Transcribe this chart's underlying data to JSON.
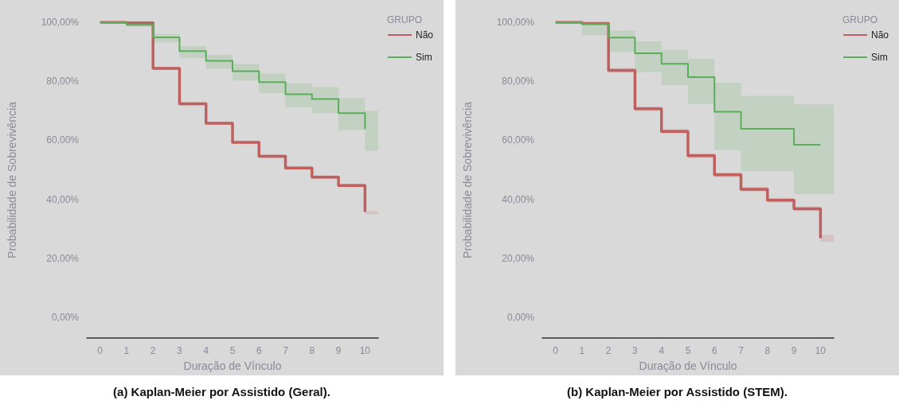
{
  "chart_data": [
    {
      "type": "step",
      "title": "(a) Kaplan-Meier por Assistido (Geral).",
      "xlabel": "Duração de Vínculo",
      "ylabel": "Probabilidade de Sobrevivência",
      "legend_title": "GRUPO",
      "legend": "top right",
      "grid": false,
      "marker": "none",
      "line_style": "solid",
      "x": [
        0,
        1,
        2,
        3,
        4,
        5,
        6,
        7,
        8,
        9,
        10,
        10.5
      ],
      "xlim": [
        -0.5,
        10.5
      ],
      "xticks": [
        0,
        1,
        2,
        3,
        4,
        5,
        6,
        7,
        8,
        9,
        10
      ],
      "ylim": [
        -7,
        100
      ],
      "yticks": [
        {
          "value": 0,
          "label": "0,00%"
        },
        {
          "value": 20,
          "label": "20,00%"
        },
        {
          "value": 40,
          "label": "40,00%"
        },
        {
          "value": 60,
          "label": "60,00%"
        },
        {
          "value": 80,
          "label": "80,00%"
        },
        {
          "value": 100,
          "label": "100,00%"
        }
      ],
      "series": [
        {
          "name": "Não",
          "color": "#c0605e",
          "values": [
            100,
            99.8,
            84.4,
            72.4,
            65.8,
            59.3,
            54.6,
            50.6,
            47.5,
            44.7,
            35.7,
            null
          ],
          "lower": [
            100,
            99.4,
            83.8,
            71.8,
            65.2,
            58.7,
            54.0,
            50.0,
            46.9,
            44.1,
            34.9,
            34.9
          ],
          "upper": [
            100,
            100,
            85.0,
            73.0,
            66.4,
            59.9,
            55.2,
            51.2,
            48.1,
            45.3,
            36.0,
            36.0
          ]
        },
        {
          "name": "Sim",
          "color": "#5aae5a",
          "values": [
            100,
            99.1,
            94.9,
            90.2,
            86.9,
            83.4,
            79.7,
            75.6,
            74.0,
            69.2,
            63.8,
            null
          ],
          "lower": [
            100,
            98.5,
            93.2,
            87.8,
            84.2,
            80.3,
            76.0,
            71.2,
            69.2,
            63.4,
            56.5,
            56.5
          ],
          "upper": [
            100,
            100,
            96.0,
            91.9,
            89.0,
            85.9,
            82.7,
            79.4,
            78.0,
            74.3,
            70.0,
            70.0
          ]
        }
      ]
    },
    {
      "type": "step",
      "title": "(b) Kaplan-Meier por Assistido (STEM).",
      "xlabel": "Duração de Vínculo",
      "ylabel": "Probabilidade de Sobrevivência",
      "legend_title": "GRUPO",
      "legend": "top right",
      "grid": false,
      "marker": "none",
      "line_style": "solid",
      "x": [
        0,
        1,
        2,
        3,
        4,
        5,
        6,
        7,
        8,
        9,
        10,
        10.5
      ],
      "xlim": [
        -0.5,
        10.5
      ],
      "xticks": [
        0,
        1,
        2,
        3,
        4,
        5,
        6,
        7,
        8,
        9,
        10
      ],
      "ylim": [
        -7,
        100
      ],
      "yticks": [
        {
          "value": 0,
          "label": "0,00%"
        },
        {
          "value": 20,
          "label": "20,00%"
        },
        {
          "value": 40,
          "label": "40,00%"
        },
        {
          "value": 60,
          "label": "60,00%"
        },
        {
          "value": 80,
          "label": "80,00%"
        },
        {
          "value": 100,
          "label": "100,00%"
        }
      ],
      "series": [
        {
          "name": "Não",
          "color": "#c0605e",
          "values": [
            100,
            99.6,
            83.7,
            70.7,
            63.0,
            54.8,
            48.3,
            43.4,
            39.7,
            36.8,
            26.8,
            null
          ],
          "lower": [
            100,
            99.0,
            82.9,
            69.9,
            62.2,
            54.0,
            47.5,
            42.6,
            38.9,
            36.0,
            25.6,
            25.6
          ],
          "upper": [
            100,
            100,
            84.5,
            71.5,
            63.8,
            55.6,
            49.1,
            44.2,
            40.5,
            37.6,
            28.0,
            28.0
          ]
        },
        {
          "name": "Sim",
          "color": "#5aae5a",
          "values": [
            100,
            99.4,
            94.8,
            89.5,
            85.9,
            81.4,
            69.7,
            63.9,
            63.9,
            58.5,
            58.5,
            null
          ],
          "lower": [
            100,
            95.6,
            89.9,
            83.1,
            78.7,
            72.4,
            56.7,
            49.5,
            49.5,
            41.7,
            41.7,
            41.7
          ],
          "upper": [
            100,
            100,
            97.2,
            93.5,
            90.7,
            87.6,
            79.5,
            75.1,
            75.1,
            72.2,
            72.2,
            72.2
          ]
        }
      ]
    }
  ]
}
